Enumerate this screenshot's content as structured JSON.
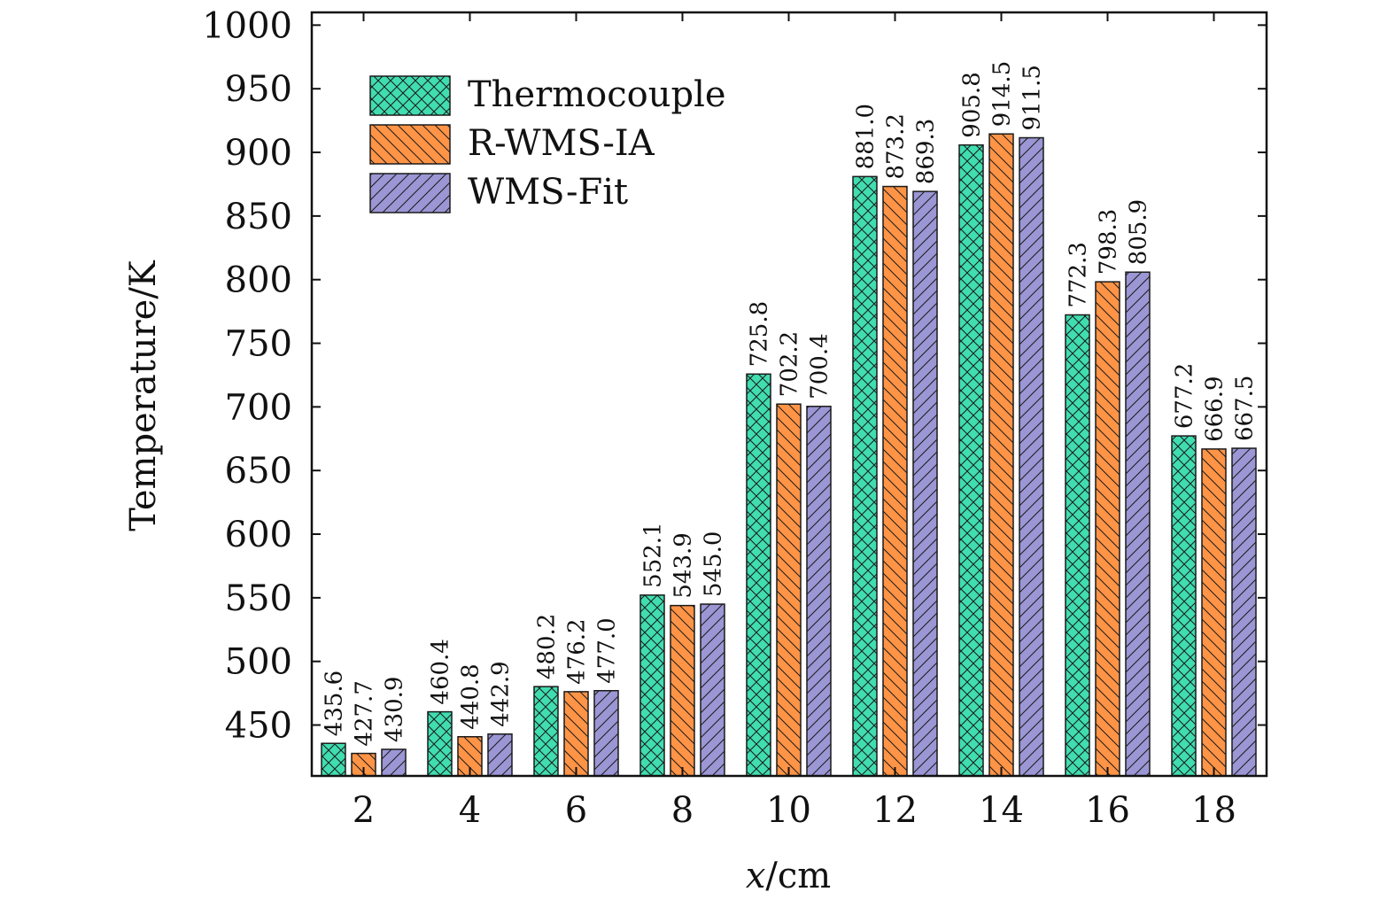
{
  "chart_data": {
    "type": "bar",
    "title": "",
    "xlabel_var": "x",
    "xlabel_unit": "/cm",
    "ylabel": "Temperature/K",
    "ylim": [
      410,
      1010
    ],
    "yticks": [
      450,
      500,
      550,
      600,
      650,
      700,
      750,
      800,
      850,
      900,
      950,
      1000
    ],
    "categories": [
      "2",
      "4",
      "6",
      "8",
      "10",
      "12",
      "14",
      "16",
      "18"
    ],
    "legend_position": "top-left",
    "series": [
      {
        "name": "Thermocouple",
        "color": "#40DDB0",
        "hatch": "crosshatch",
        "values": [
          435.6,
          460.4,
          480.2,
          552.1,
          725.8,
          881.0,
          905.8,
          772.3,
          677.2
        ],
        "labels": [
          "435.6",
          "460.4",
          "480.2",
          "552.1",
          "725.8",
          "881.0",
          "905.8",
          "772.3",
          "677.2"
        ]
      },
      {
        "name": "R-WMS-IA",
        "color": "#FF9446",
        "hatch": "backslash",
        "values": [
          427.7,
          440.8,
          476.2,
          543.9,
          702.2,
          873.2,
          914.5,
          798.3,
          666.9
        ],
        "labels": [
          "427.7",
          "440.8",
          "476.2",
          "543.9",
          "702.2",
          "873.2",
          "914.5",
          "798.3",
          "666.9"
        ]
      },
      {
        "name": "WMS-Fit",
        "color": "#9B96D4",
        "hatch": "slash",
        "values": [
          430.9,
          442.9,
          477.0,
          545.0,
          700.4,
          869.3,
          911.5,
          805.9,
          667.5
        ],
        "labels": [
          "430.9",
          "442.9",
          "477.0",
          "545.0",
          "700.4",
          "869.3",
          "911.5",
          "805.9",
          "667.5"
        ]
      }
    ]
  }
}
